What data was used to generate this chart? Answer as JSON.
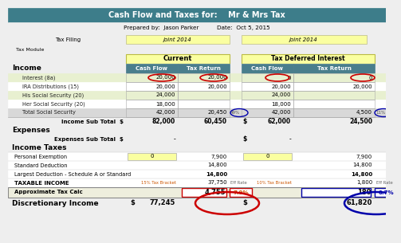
{
  "title": "Cash Flow and Taxes for:    Mr & Mrs Tax",
  "subtitle1": "Prepared by:  Jason Parker          Date:  Oct 5, 2015",
  "subtitle2_label": "Tax Filing",
  "subtitle2_val1": "joint 2014",
  "subtitle2_val2": "joint 2014",
  "tax_module": "Tax Module",
  "section_current": "Current",
  "section_deferred": "Tax Deferred Interest",
  "income_label": "Income",
  "income_rows": [
    [
      "Interest (8a)",
      "20,000",
      "20,000",
      "0",
      "0"
    ],
    [
      "IRA Distributions (15)",
      "20,000",
      "20,000",
      "20,000",
      "20,000"
    ],
    [
      "His Social Security (20)",
      "24,000",
      "",
      "24,000",
      ""
    ],
    [
      "Her Social Security (20)",
      "18,000",
      "",
      "18,000",
      ""
    ],
    [
      "Total Social Security",
      "42,000",
      "20,450",
      "42,000",
      "4,500"
    ]
  ],
  "pct1": "49%",
  "pct2": "11%",
  "expenses_label": "Expenses",
  "income_taxes_label": "Income Taxes",
  "tax_rows": [
    [
      "Personal Exemption",
      "0",
      "7,900",
      "0",
      "7,900"
    ],
    [
      "Standard Deduction",
      "",
      "14,800",
      "",
      "14,800"
    ],
    [
      "Largest Deduction - Schedule A or Standard",
      "",
      "14,800",
      "",
      "14,800"
    ],
    [
      "TAXABLE INCOME",
      "15% Tax Bracket",
      "37,750",
      "10% Tax Bracket",
      "1,800"
    ]
  ],
  "eff_rate1": "Eff Rate",
  "eff_rate2": "Eff Rate",
  "approx_row": [
    "Approximate Tax Calc",
    "4,755",
    "7.9%",
    "180",
    "0.7%"
  ],
  "disc_income": [
    "Discretionary Income",
    "$",
    "77,245",
    "$",
    "61,820"
  ],
  "teal_header": "#3d7d8a",
  "teal_col_header": "#4a7e8c",
  "yellow_bg": "#faffa0",
  "green_light": "#e8f0d0",
  "gray_light": "#d8d8d8",
  "white_bg": "#ffffff",
  "page_bg": "#eeeeee",
  "approx_bg": "#eeeedd",
  "red_color": "#cc0000",
  "blue_color": "#0000aa",
  "orange_text": "#cc5500"
}
